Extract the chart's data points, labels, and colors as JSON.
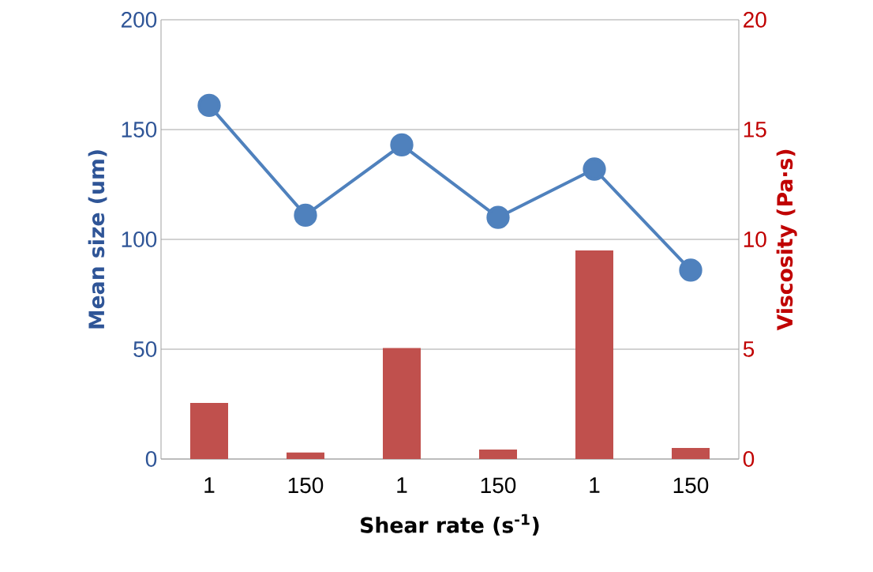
{
  "chart_data": {
    "type": "line",
    "categories": [
      "1",
      "150",
      "1",
      "150",
      "1",
      "150"
    ],
    "xlabel": "Shear rate (s$^{-1}$)",
    "ylabel": "Mean size (um)",
    "y2label": "Viscosity (Pa·s)",
    "ylim": [
      0,
      200
    ],
    "yticks": [
      0,
      50,
      100,
      150,
      200
    ],
    "y2lim": [
      0,
      20
    ],
    "y2ticks": [
      0,
      5,
      10,
      15,
      20
    ],
    "grid": "y",
    "marker": "circle",
    "series": [
      {
        "color": "#4f81bd",
        "values": [
          161,
          111,
          143,
          110,
          132,
          86
        ]
      },
      {
        "type": "bar",
        "axis": "y2",
        "color": "#c0504d",
        "values": [
          2.55,
          0.3,
          5.05,
          0.43,
          9.5,
          0.5
        ]
      }
    ]
  }
}
